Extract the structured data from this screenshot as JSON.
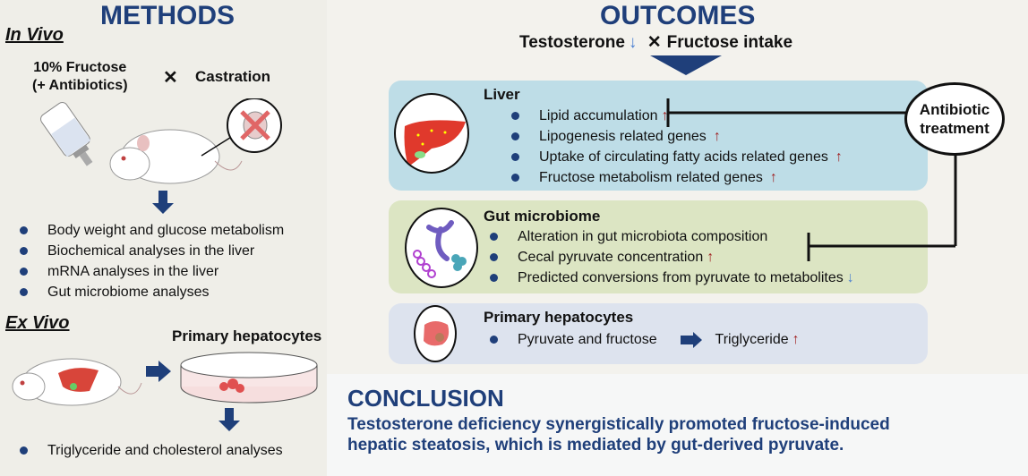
{
  "methods": {
    "title": "METHODS",
    "in_vivo": "In Vivo",
    "fructose_line1": "10% Fructose",
    "fructose_line2": "(+ Antibiotics)",
    "times": "✕",
    "castration": "Castration",
    "in_vivo_items": [
      "Body weight and glucose metabolism",
      "Biochemical analyses in the liver",
      "mRNA analyses in the liver",
      "Gut microbiome analyses"
    ],
    "ex_vivo": "Ex Vivo",
    "primary_hepatocytes": "Primary hepatocytes",
    "ex_vivo_items": [
      "Triglyceride and cholesterol analyses"
    ]
  },
  "outcomes": {
    "title": "OUTCOMES",
    "testosterone": "Testosterone",
    "down_arrow": "↓",
    "times": "✕",
    "fructose_intake": "Fructose intake",
    "liver": {
      "title": "Liver",
      "items": [
        {
          "text": "Lipid accumulation",
          "arrow": "↑"
        },
        {
          "text": "Lipogenesis related genes",
          "arrow": "↑"
        },
        {
          "text": "Uptake of circulating fatty acids related genes",
          "arrow": "↑"
        },
        {
          "text": "Fructose metabolism related genes",
          "arrow": "↑"
        }
      ]
    },
    "gut": {
      "title": "Gut microbiome",
      "items": [
        {
          "text": "Alteration in gut microbiota composition",
          "arrow": ""
        },
        {
          "text": "Cecal pyruvate concentration",
          "arrow": "↑"
        },
        {
          "text": "Predicted conversions from pyruvate to metabolites",
          "arrow": "↓"
        }
      ]
    },
    "hepatocytes": {
      "title": "Primary hepatocytes",
      "from": "Pyruvate and fructose",
      "to": "Triglyceride",
      "arrow": "↑"
    },
    "antibiotic_line1": "Antibiotic",
    "antibiotic_line2": "treatment"
  },
  "conclusion": {
    "title": "CONCLUSION",
    "line1": "Testosterone deficiency synergistically promoted fructose-induced",
    "line2": "hepatic steatosis, which is mediated by gut-derived pyruvate."
  },
  "colors": {
    "title_blue": "#1f3f7a",
    "liver_box": "#bedde7",
    "gut_box": "#dce5c3",
    "hepatocyte_box": "#dde3ee",
    "up_arrow": "#a02020",
    "down_arrow": "#4a7fd0"
  }
}
